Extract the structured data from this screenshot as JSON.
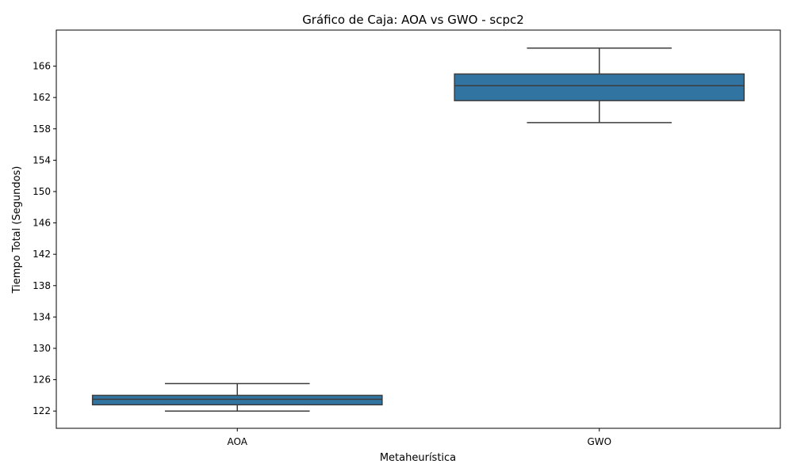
{
  "chart_data": {
    "type": "box",
    "title": "Gráfico de Caja: AOA vs GWO - scpc2",
    "xlabel": "Metaheurística",
    "ylabel": "Tiempo Total (Segundos)",
    "ylim": [
      119.8,
      170.6
    ],
    "yticks": [
      122,
      126,
      130,
      134,
      138,
      142,
      146,
      150,
      154,
      158,
      162,
      166
    ],
    "grid": false,
    "box_color": "#3274a1",
    "line_color": "#3d3d3d",
    "categories": [
      "AOA",
      "GWO"
    ],
    "boxes": [
      {
        "name": "AOA",
        "whisker_low": 122.0,
        "q1": 122.8,
        "median": 123.5,
        "q3": 124.0,
        "whisker_high": 125.5
      },
      {
        "name": "GWO",
        "whisker_low": 158.8,
        "q1": 161.6,
        "median": 163.5,
        "q3": 165.0,
        "whisker_high": 168.3
      }
    ]
  }
}
